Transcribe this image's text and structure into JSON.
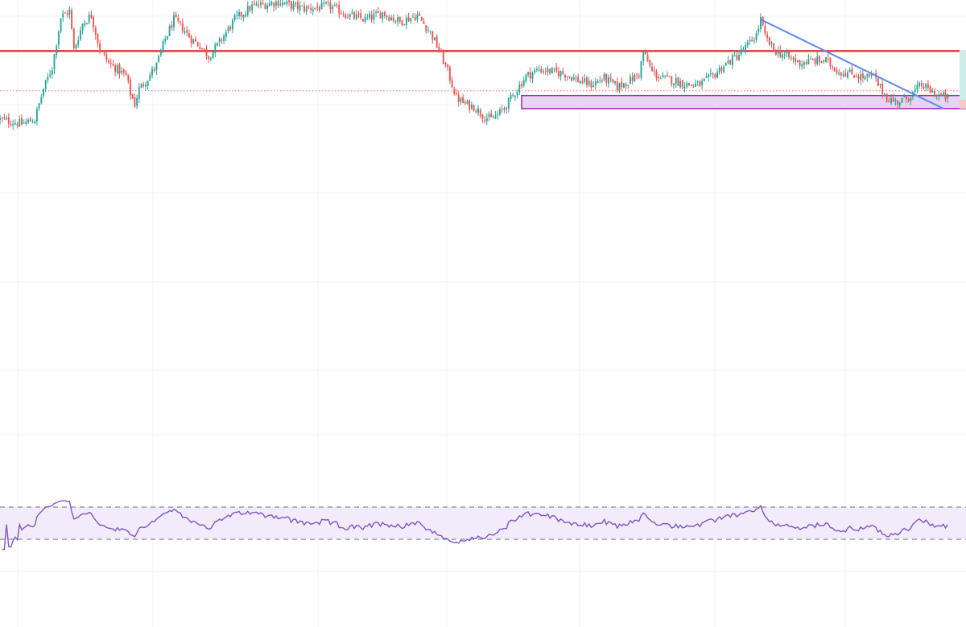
{
  "chart_data": [
    {
      "type": "candlestick",
      "title": "",
      "xlabel": "",
      "ylabel": "",
      "x_range": [
        0,
        220
      ],
      "ylim": [
        0,
        100
      ],
      "grid": true,
      "colors": {
        "up": "#26a69a",
        "down": "#ef5350",
        "resistance": "#e53935",
        "support_zone_fill": "#e6d4f0",
        "support_zone_border": "#9c27b0",
        "trendline": "#5b8def",
        "dotted_level": "#e57373"
      },
      "anchors": [
        [
          0,
          48
        ],
        [
          5,
          46
        ],
        [
          8,
          48
        ],
        [
          10,
          62
        ],
        [
          12,
          72
        ],
        [
          14,
          95
        ],
        [
          16,
          98
        ],
        [
          17,
          80
        ],
        [
          19,
          92
        ],
        [
          21,
          96
        ],
        [
          23,
          80
        ],
        [
          25,
          74
        ],
        [
          27,
          71
        ],
        [
          29,
          68
        ],
        [
          30,
          60
        ],
        [
          31,
          55
        ],
        [
          32,
          62
        ],
        [
          34,
          67
        ],
        [
          36,
          73
        ],
        [
          38,
          85
        ],
        [
          40,
          94
        ],
        [
          42,
          90
        ],
        [
          44,
          85
        ],
        [
          46,
          82
        ],
        [
          48,
          77
        ],
        [
          50,
          82
        ],
        [
          52,
          88
        ],
        [
          54,
          94
        ],
        [
          58,
          100
        ],
        [
          64,
          102
        ],
        [
          70,
          99
        ],
        [
          76,
          100
        ],
        [
          80,
          96
        ],
        [
          84,
          94
        ],
        [
          88,
          97
        ],
        [
          92,
          93
        ],
        [
          96,
          96
        ],
        [
          99,
          88
        ],
        [
          101,
          80
        ],
        [
          103,
          70
        ],
        [
          105,
          58
        ],
        [
          107,
          55
        ],
        [
          109,
          54
        ],
        [
          111,
          50
        ],
        [
          113,
          48
        ],
        [
          115,
          51
        ],
        [
          117,
          56
        ],
        [
          119,
          62
        ],
        [
          121,
          68
        ],
        [
          124,
          71
        ],
        [
          127,
          70
        ],
        [
          130,
          69
        ],
        [
          133,
          66
        ],
        [
          136,
          64
        ],
        [
          139,
          67
        ],
        [
          142,
          63
        ],
        [
          145,
          66
        ],
        [
          147,
          69
        ],
        [
          148,
          79
        ],
        [
          150,
          70
        ],
        [
          152,
          67
        ],
        [
          155,
          66
        ],
        [
          158,
          64
        ],
        [
          161,
          64
        ],
        [
          164,
          68
        ],
        [
          166,
          72
        ],
        [
          168,
          75
        ],
        [
          170,
          78
        ],
        [
          172,
          82
        ],
        [
          174,
          87
        ],
        [
          175,
          94
        ],
        [
          176,
          86
        ],
        [
          178,
          80
        ],
        [
          181,
          77
        ],
        [
          184,
          74
        ],
        [
          187,
          75
        ],
        [
          190,
          75
        ],
        [
          193,
          70
        ],
        [
          196,
          69
        ],
        [
          199,
          67
        ],
        [
          201,
          68
        ],
        [
          202,
          64
        ],
        [
          204,
          58
        ],
        [
          206,
          56
        ],
        [
          208,
          57
        ],
        [
          210,
          60
        ],
        [
          212,
          64
        ],
        [
          214,
          61
        ],
        [
          216,
          59
        ],
        [
          218,
          58
        ]
      ],
      "resistance_level": 79.5,
      "dotted_level": 61.2,
      "support_zone": {
        "x_start": 120,
        "x_end": 220,
        "y_top": 59,
        "y_bottom": 53
      },
      "trendline": {
        "start": [
          175,
          94
        ],
        "end": [
          217,
          53
        ]
      },
      "rsi": {
        "upper_band": 70,
        "lower_band": 30,
        "ylim": [
          0,
          100
        ],
        "color": "#7e57c2",
        "band_fill": "#f1ebfb"
      }
    }
  ]
}
